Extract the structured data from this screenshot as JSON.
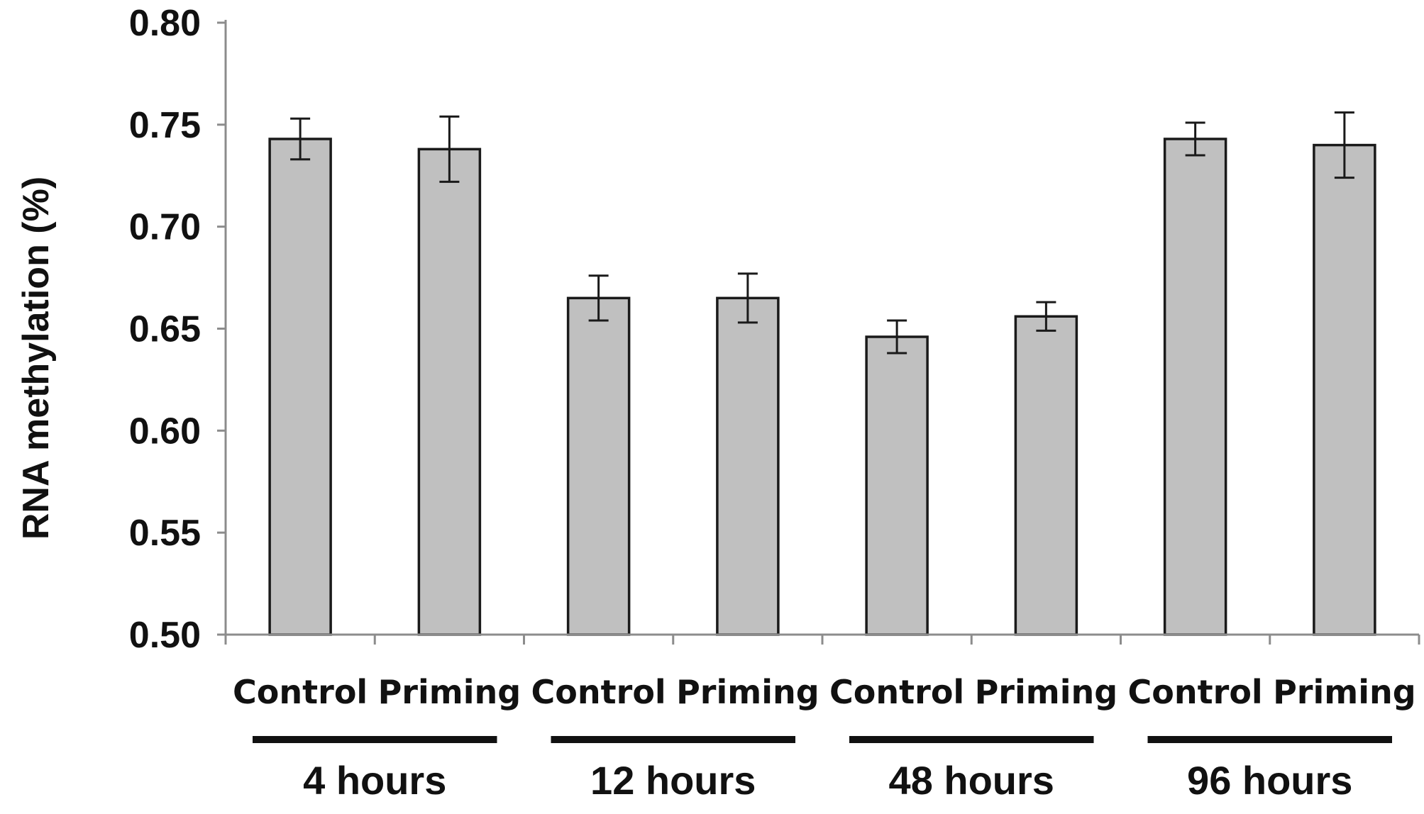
{
  "chart_data": {
    "type": "bar",
    "ylabel": "RNA methylation (%)",
    "ylim": [
      0.5,
      0.8
    ],
    "yticks": [
      "0.50",
      "0.55",
      "0.60",
      "0.65",
      "0.70",
      "0.75",
      "0.80"
    ],
    "grid": false,
    "legend": "none",
    "bar_color": "#c0c0c0",
    "bar_edge_color": "#1a1a1a",
    "axis_color": "#8c8c8c",
    "groups": [
      "4 hours",
      "12 hours",
      "48 hours",
      "96 hours"
    ],
    "categories": [
      "Control",
      "Priming",
      "Control",
      "Priming",
      "Control",
      "Priming",
      "Control",
      "Priming"
    ],
    "values": [
      0.743,
      0.738,
      0.665,
      0.665,
      0.646,
      0.656,
      0.743,
      0.74
    ],
    "errors": [
      0.01,
      0.016,
      0.011,
      0.012,
      0.008,
      0.007,
      0.008,
      0.016
    ]
  }
}
